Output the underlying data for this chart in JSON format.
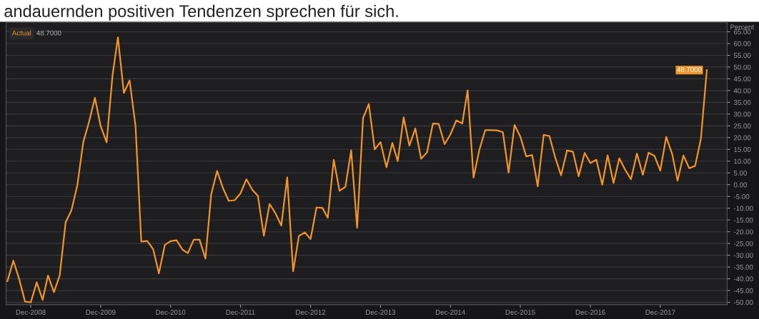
{
  "chart_data": {
    "type": "line",
    "title": "andauernden positiven Tendenzen sprechen für sich.",
    "ylabel": "Percent",
    "x": [
      "2008-08",
      "2008-09",
      "2008-10",
      "2008-11",
      "2008-12",
      "2009-01",
      "2009-02",
      "2009-03",
      "2009-04",
      "2009-05",
      "2009-06",
      "2009-07",
      "2009-08",
      "2009-09",
      "2009-10",
      "2009-11",
      "2009-12",
      "2010-01",
      "2010-02",
      "2010-03",
      "2010-04",
      "2010-05",
      "2010-06",
      "2010-07",
      "2010-08",
      "2010-09",
      "2010-10",
      "2010-11",
      "2010-12",
      "2011-01",
      "2011-02",
      "2011-03",
      "2011-04",
      "2011-05",
      "2011-06",
      "2011-07",
      "2011-08",
      "2011-09",
      "2011-10",
      "2011-11",
      "2011-12",
      "2012-01",
      "2012-02",
      "2012-03",
      "2012-04",
      "2012-05",
      "2012-06",
      "2012-07",
      "2012-08",
      "2012-09",
      "2012-10",
      "2012-11",
      "2012-12",
      "2013-01",
      "2013-02",
      "2013-03",
      "2013-04",
      "2013-05",
      "2013-06",
      "2013-07",
      "2013-08",
      "2013-09",
      "2013-10",
      "2013-11",
      "2013-12",
      "2014-01",
      "2014-02",
      "2014-03",
      "2014-04",
      "2014-05",
      "2014-06",
      "2014-07",
      "2014-08",
      "2014-09",
      "2014-10",
      "2014-11",
      "2014-12",
      "2015-01",
      "2015-02",
      "2015-03",
      "2015-04",
      "2015-05",
      "2015-06",
      "2015-07",
      "2015-08",
      "2015-09",
      "2015-10",
      "2015-11",
      "2015-12",
      "2016-01",
      "2016-02",
      "2016-03",
      "2016-04",
      "2016-05",
      "2016-06",
      "2016-07",
      "2016-08",
      "2016-09",
      "2016-10",
      "2016-11",
      "2016-12",
      "2017-01",
      "2017-02",
      "2017-03",
      "2017-04",
      "2017-05",
      "2017-06",
      "2017-07",
      "2017-08",
      "2017-09",
      "2017-10",
      "2017-11",
      "2017-12",
      "2018-01",
      "2018-02",
      "2018-03",
      "2018-04",
      "2018-05",
      "2018-06",
      "2018-07",
      "2018-08"
    ],
    "series": [
      {
        "name": "Actual",
        "color": "#f0952a",
        "values": [
          -41,
          -32.3,
          -40,
          -49.7,
          -50,
          -41.5,
          -49,
          -38.6,
          -45.7,
          -38.6,
          -16,
          -11,
          -0.3,
          18,
          26.6,
          36.9,
          24.9,
          18,
          46.5,
          62.6,
          39,
          44.3,
          25,
          -24.2,
          -23.9,
          -27.4,
          -37.7,
          -25.6,
          -24,
          -23.6,
          -27.6,
          -29.1,
          -23.4,
          -23.4,
          -31.4,
          -4.2,
          5.8,
          -1.6,
          -6.9,
          -6.6,
          -3.7,
          2.3,
          -2.2,
          -4.8,
          -21.7,
          -8.2,
          -12.2,
          -17.4,
          3.1,
          -36.8,
          -21.8,
          -20.3,
          -23.1,
          -9.7,
          -9.9,
          -14.1,
          10.6,
          -2.6,
          -0.9,
          14.6,
          -18.3,
          28.3,
          34.3,
          15,
          18.1,
          7.4,
          17.7,
          10,
          28.6,
          16.6,
          23.9,
          11,
          13.7,
          26,
          25.8,
          17.2,
          21.3,
          27.3,
          26,
          40.1,
          3,
          14.7,
          23.2,
          23.2,
          23.1,
          22.3,
          5.1,
          25.4,
          20.5,
          12,
          12.6,
          -0.7,
          21.1,
          20.7,
          11.4,
          4,
          14.5,
          14,
          3.6,
          13.5,
          9.2,
          10.6,
          0,
          12.5,
          0.7,
          11.2,
          6.3,
          2.3,
          13.2,
          4.2,
          13.6,
          12.2,
          6,
          20.3,
          13,
          1.7,
          12.4,
          7,
          8,
          19.5,
          48.7
        ],
        "value_labels": [
          null,
          null,
          null,
          null,
          null,
          null,
          null,
          null,
          null,
          null,
          null,
          null,
          null,
          null,
          null,
          null,
          null,
          null,
          null,
          null,
          null,
          null,
          null,
          null,
          null,
          null,
          null,
          null,
          null,
          null,
          null,
          null,
          null,
          null,
          null,
          null,
          null,
          null,
          null,
          null,
          null,
          null,
          null,
          null,
          null,
          null,
          null,
          null,
          null,
          null,
          null,
          null,
          null,
          null,
          null,
          null,
          null,
          null,
          null,
          null,
          null,
          null,
          null,
          null,
          null,
          null,
          null,
          null,
          null,
          null,
          null,
          null,
          null,
          null,
          null,
          null,
          null,
          null,
          null,
          null,
          null,
          null,
          null,
          null,
          null,
          null,
          null,
          null,
          null,
          null,
          null,
          null,
          null,
          null,
          null,
          null,
          null,
          null,
          null,
          null,
          null,
          null,
          null,
          null,
          null,
          null,
          null,
          null,
          null,
          null,
          null,
          null,
          null,
          null,
          null,
          null,
          null,
          null,
          null,
          null,
          "48.7000"
        ]
      }
    ],
    "xlim": [
      "2008-07-25",
      "2018-11-15"
    ],
    "xticks": [
      {
        "value": "2008-12",
        "label": "Dec-2008"
      },
      {
        "value": "2009-12",
        "label": "Dec-2009"
      },
      {
        "value": "2010-12",
        "label": "Dec-2010"
      },
      {
        "value": "2011-12",
        "label": "Dec-2011"
      },
      {
        "value": "2012-12",
        "label": "Dec-2012"
      },
      {
        "value": "2013-12",
        "label": "Dec-2013"
      },
      {
        "value": "2014-12",
        "label": "Dec-2014"
      },
      {
        "value": "2015-12",
        "label": "Dec-2015"
      },
      {
        "value": "2016-12",
        "label": "Dec-2016"
      },
      {
        "value": "2017-12",
        "label": "Dec-2017"
      }
    ],
    "ylim": [
      -51,
      69
    ],
    "yticks": [
      {
        "value": -50,
        "label": "-50.00"
      },
      {
        "value": -45,
        "label": "-45.00"
      },
      {
        "value": -40,
        "label": "-40.00"
      },
      {
        "value": -35,
        "label": "-35.00"
      },
      {
        "value": -30,
        "label": "-30.00"
      },
      {
        "value": -25,
        "label": "-25.00"
      },
      {
        "value": -20,
        "label": "-20.00"
      },
      {
        "value": -15,
        "label": "-15.00"
      },
      {
        "value": -10,
        "label": "-10.00"
      },
      {
        "value": -5,
        "label": "-5.00"
      },
      {
        "value": 0,
        "label": "0.00"
      },
      {
        "value": 5,
        "label": "5.00"
      },
      {
        "value": 10,
        "label": "10.00"
      },
      {
        "value": 15,
        "label": "15.00"
      },
      {
        "value": 20,
        "label": "20.00"
      },
      {
        "value": 25,
        "label": "25.00"
      },
      {
        "value": 30,
        "label": "30.00"
      },
      {
        "value": 35,
        "label": "35.00"
      },
      {
        "value": 40,
        "label": "40.00"
      },
      {
        "value": 45,
        "label": "45.00"
      },
      {
        "value": 50,
        "label": "50.00"
      },
      {
        "value": 55,
        "label": "55.00"
      },
      {
        "value": 60,
        "label": "60.00"
      },
      {
        "value": 65,
        "label": "65.00"
      }
    ],
    "grid": "y",
    "marker": "none",
    "line_style": "solid"
  }
}
